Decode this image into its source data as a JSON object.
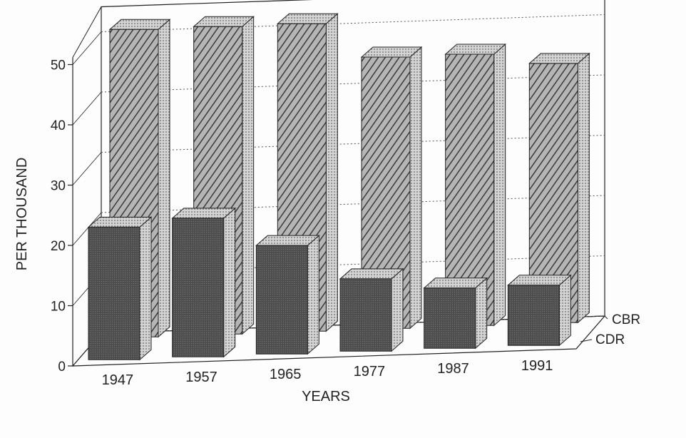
{
  "chart_data": {
    "type": "bar",
    "title": "",
    "xlabel": "YEARS",
    "ylabel": "PER THOUSAND",
    "ylim": [
      0,
      50
    ],
    "yticks": [
      0,
      10,
      20,
      30,
      40,
      50
    ],
    "categories": [
      "1947",
      "1957",
      "1965",
      "1977",
      "1987",
      "1991"
    ],
    "series": [
      {
        "name": "CBR",
        "values": [
          51,
          51,
          51,
          45,
          45,
          43
        ],
        "pattern": "hatched"
      },
      {
        "name": "CDR",
        "values": [
          22,
          23,
          18,
          12,
          10,
          10
        ],
        "pattern": "solid-dark"
      }
    ],
    "grid": true,
    "legend": "right, at depth labels",
    "three_d": true,
    "colors": {
      "cdr_front": "#5a5a5a",
      "cbr_front": "#9a9a9a",
      "side": "#c8c8c8",
      "top": "#d8d8d8",
      "ink": "#222222"
    }
  }
}
